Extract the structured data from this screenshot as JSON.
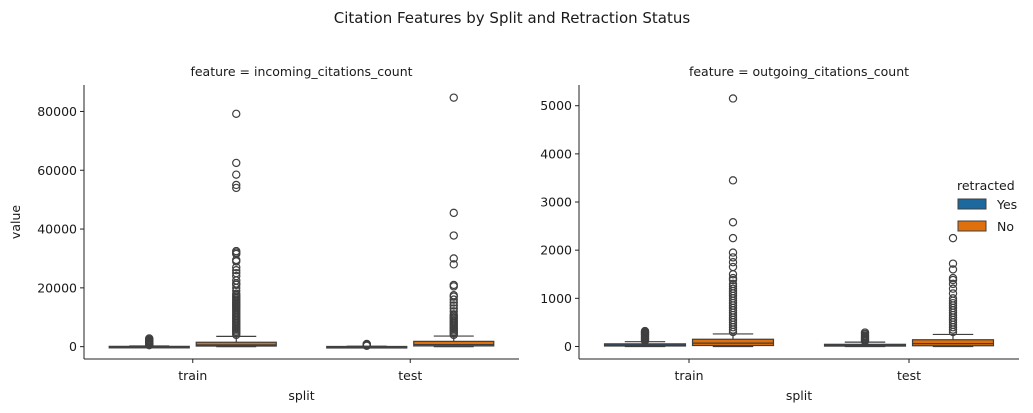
{
  "suptitle": "Citation Features by Split and Retraction Status",
  "legend": {
    "title": "retracted",
    "placement": "right",
    "entries": [
      {
        "label": "Yes",
        "color": "#1f77b4"
      },
      {
        "label": "No",
        "color": "#ff7f0e"
      }
    ]
  },
  "chart_data": [
    {
      "type": "box",
      "title": "feature = incoming_citations_count",
      "xlabel": "split",
      "ylabel": "value",
      "categories": [
        "train",
        "test"
      ],
      "ylim": [
        -4200,
        89000
      ],
      "yticks": [
        0,
        20000,
        40000,
        60000,
        80000
      ],
      "ytick_labels": [
        "0",
        "20000",
        "40000",
        "60000",
        "80000"
      ],
      "series": [
        {
          "name": "Yes",
          "color": "#1f77b4",
          "boxes": [
            {
              "q1": 0,
              "median": 20,
              "q3": 100,
              "whisker_low": 0,
              "whisker_high": 250,
              "outliers": [
                2800,
                2400,
                2100,
                1800,
                1600,
                1400,
                1200,
                1000,
                900,
                800,
                700,
                600,
                500
              ]
            },
            {
              "q1": 0,
              "median": 10,
              "q3": 60,
              "whisker_low": 0,
              "whisker_high": 150,
              "outliers": [
                900,
                750,
                600,
                500,
                400,
                300
              ]
            }
          ]
        },
        {
          "name": "No",
          "color": "#ff7f0e",
          "boxes": [
            {
              "q1": 200,
              "median": 600,
              "q3": 1500,
              "whisker_low": 0,
              "whisker_high": 3500,
              "outliers": [
                79200,
                62500,
                58500,
                55000,
                54000,
                32500,
                32000,
                31500,
                29500,
                29000,
                27000,
                26000,
                25000,
                24000,
                22500,
                21500,
                21000,
                20000,
                19000,
                18000,
                17500,
                17000,
                16500,
                16000,
                15500,
                15000,
                14500,
                14000,
                13500,
                13000,
                12500,
                12000,
                11500,
                11000,
                10500,
                10000,
                9500,
                9000,
                8500,
                8000,
                7500,
                7000,
                6500,
                6000,
                5500,
                5000,
                4500,
                4000
              ]
            },
            {
              "q1": 250,
              "median": 700,
              "q3": 1800,
              "whisker_low": 0,
              "whisker_high": 3600,
              "outliers": [
                84700,
                45500,
                37800,
                30000,
                28000,
                21000,
                20500,
                17500,
                17000,
                16000,
                15000,
                14000,
                13000,
                12000,
                11000,
                10500,
                10000,
                9500,
                9000,
                8500,
                8000,
                7500,
                7000,
                6500,
                6000,
                5500,
                5000,
                4500,
                4000
              ]
            }
          ]
        }
      ]
    },
    {
      "type": "box",
      "title": "feature = outgoing_citations_count",
      "xlabel": "split",
      "ylabel": "",
      "categories": [
        "train",
        "test"
      ],
      "ylim": [
        -260,
        5430
      ],
      "yticks": [
        0,
        1000,
        2000,
        3000,
        4000,
        5000
      ],
      "ytick_labels": [
        "0",
        "1000",
        "2000",
        "3000",
        "4000",
        "5000"
      ],
      "series": [
        {
          "name": "Yes",
          "color": "#1f77b4",
          "boxes": [
            {
              "q1": 10,
              "median": 25,
              "q3": 55,
              "whisker_low": 0,
              "whisker_high": 100,
              "outliers": [
                320,
                300,
                280,
                260,
                240,
                220,
                200,
                180,
                160,
                140,
                120
              ]
            },
            {
              "q1": 8,
              "median": 20,
              "q3": 45,
              "whisker_low": 0,
              "whisker_high": 90,
              "outliers": [
                290,
                260,
                230,
                210,
                190,
                170,
                150,
                130,
                110
              ]
            }
          ]
        },
        {
          "name": "No",
          "color": "#ff7f0e",
          "boxes": [
            {
              "q1": 20,
              "median": 70,
              "q3": 150,
              "whisker_low": 0,
              "whisker_high": 260,
              "outliers": [
                5150,
                3450,
                2580,
                2250,
                1950,
                1850,
                1750,
                1650,
                1500,
                1420,
                1380,
                1300,
                1250,
                1200,
                1150,
                1100,
                1050,
                1000,
                950,
                900,
                850,
                800,
                750,
                700,
                650,
                600,
                550,
                500,
                450,
                400,
                350,
                300
              ]
            },
            {
              "q1": 15,
              "median": 60,
              "q3": 140,
              "whisker_low": 0,
              "whisker_high": 250,
              "outliers": [
                2250,
                1720,
                1600,
                1420,
                1380,
                1300,
                1200,
                1100,
                1000,
                950,
                900,
                850,
                800,
                750,
                700,
                650,
                600,
                550,
                500,
                450,
                400,
                350,
                300
              ]
            }
          ]
        }
      ]
    }
  ]
}
